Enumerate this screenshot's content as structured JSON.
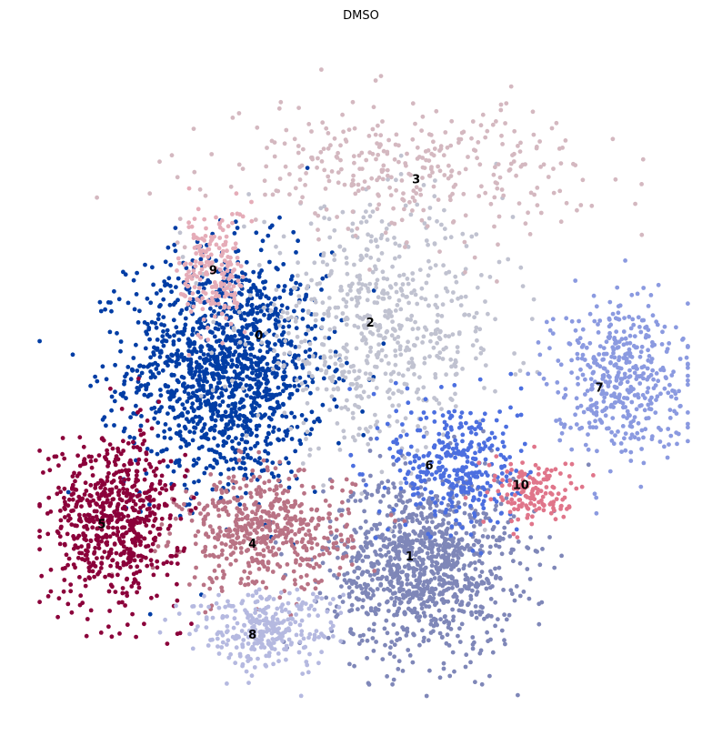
{
  "chart_data": {
    "type": "scatter",
    "title": "DMSO",
    "xlabel": "",
    "ylabel": "",
    "axes_visible": false,
    "grid": false,
    "legend": "on data",
    "xlim": [
      0,
      100
    ],
    "ylim": [
      0,
      100
    ],
    "clusters": [
      {
        "label": "0",
        "color": "#003da5",
        "center": [
          29,
          51
        ],
        "spread": [
          7.5,
          9
        ],
        "count": 1400
      },
      {
        "label": "1",
        "color": "#7f87b8",
        "center": [
          59,
          21
        ],
        "spread": [
          7,
          7
        ],
        "count": 1100
      },
      {
        "label": "2",
        "color": "#c0c2d0",
        "center": [
          52,
          57
        ],
        "spread": [
          10,
          9
        ],
        "count": 650
      },
      {
        "label": "3",
        "color": "#d4b8c0",
        "center": [
          56,
          82
        ],
        "spread": [
          14,
          5
        ],
        "count": 350
      },
      {
        "label": "4",
        "color": "#b97385",
        "center": [
          35,
          26
        ],
        "spread": [
          6.5,
          4.5
        ],
        "count": 550
      },
      {
        "label": "5",
        "color": "#8b003a",
        "center": [
          12,
          28
        ],
        "spread": [
          5,
          6.5
        ],
        "count": 650
      },
      {
        "label": "6",
        "color": "#4c6fe0",
        "center": [
          64,
          36
        ],
        "spread": [
          5,
          5.5
        ],
        "count": 350
      },
      {
        "label": "7",
        "color": "#8b9ae0",
        "center": [
          89,
          50
        ],
        "spread": [
          5,
          6
        ],
        "count": 450
      },
      {
        "label": "8",
        "color": "#b5b9e0",
        "center": [
          35,
          11
        ],
        "spread": [
          5.5,
          3
        ],
        "count": 300
      },
      {
        "label": "9",
        "color": "#e5acb8",
        "center": [
          27,
          66
        ],
        "spread": [
          2.5,
          5
        ],
        "count": 200
      },
      {
        "label": "10",
        "color": "#e0758a",
        "center": [
          76,
          32
        ],
        "spread": [
          3.5,
          2.5
        ],
        "count": 150
      }
    ],
    "label_positions": [
      {
        "label": "0",
        "x": 34,
        "y": 56
      },
      {
        "label": "1",
        "x": 57,
        "y": 22
      },
      {
        "label": "2",
        "x": 51,
        "y": 58
      },
      {
        "label": "3",
        "x": 58,
        "y": 80
      },
      {
        "label": "4",
        "x": 33,
        "y": 24
      },
      {
        "label": "5",
        "x": 10,
        "y": 27
      },
      {
        "label": "6",
        "x": 60,
        "y": 36
      },
      {
        "label": "7",
        "x": 86,
        "y": 48
      },
      {
        "label": "8",
        "x": 33,
        "y": 10
      },
      {
        "label": "9",
        "x": 27,
        "y": 66
      },
      {
        "label": "10",
        "x": 74,
        "y": 33
      }
    ]
  }
}
